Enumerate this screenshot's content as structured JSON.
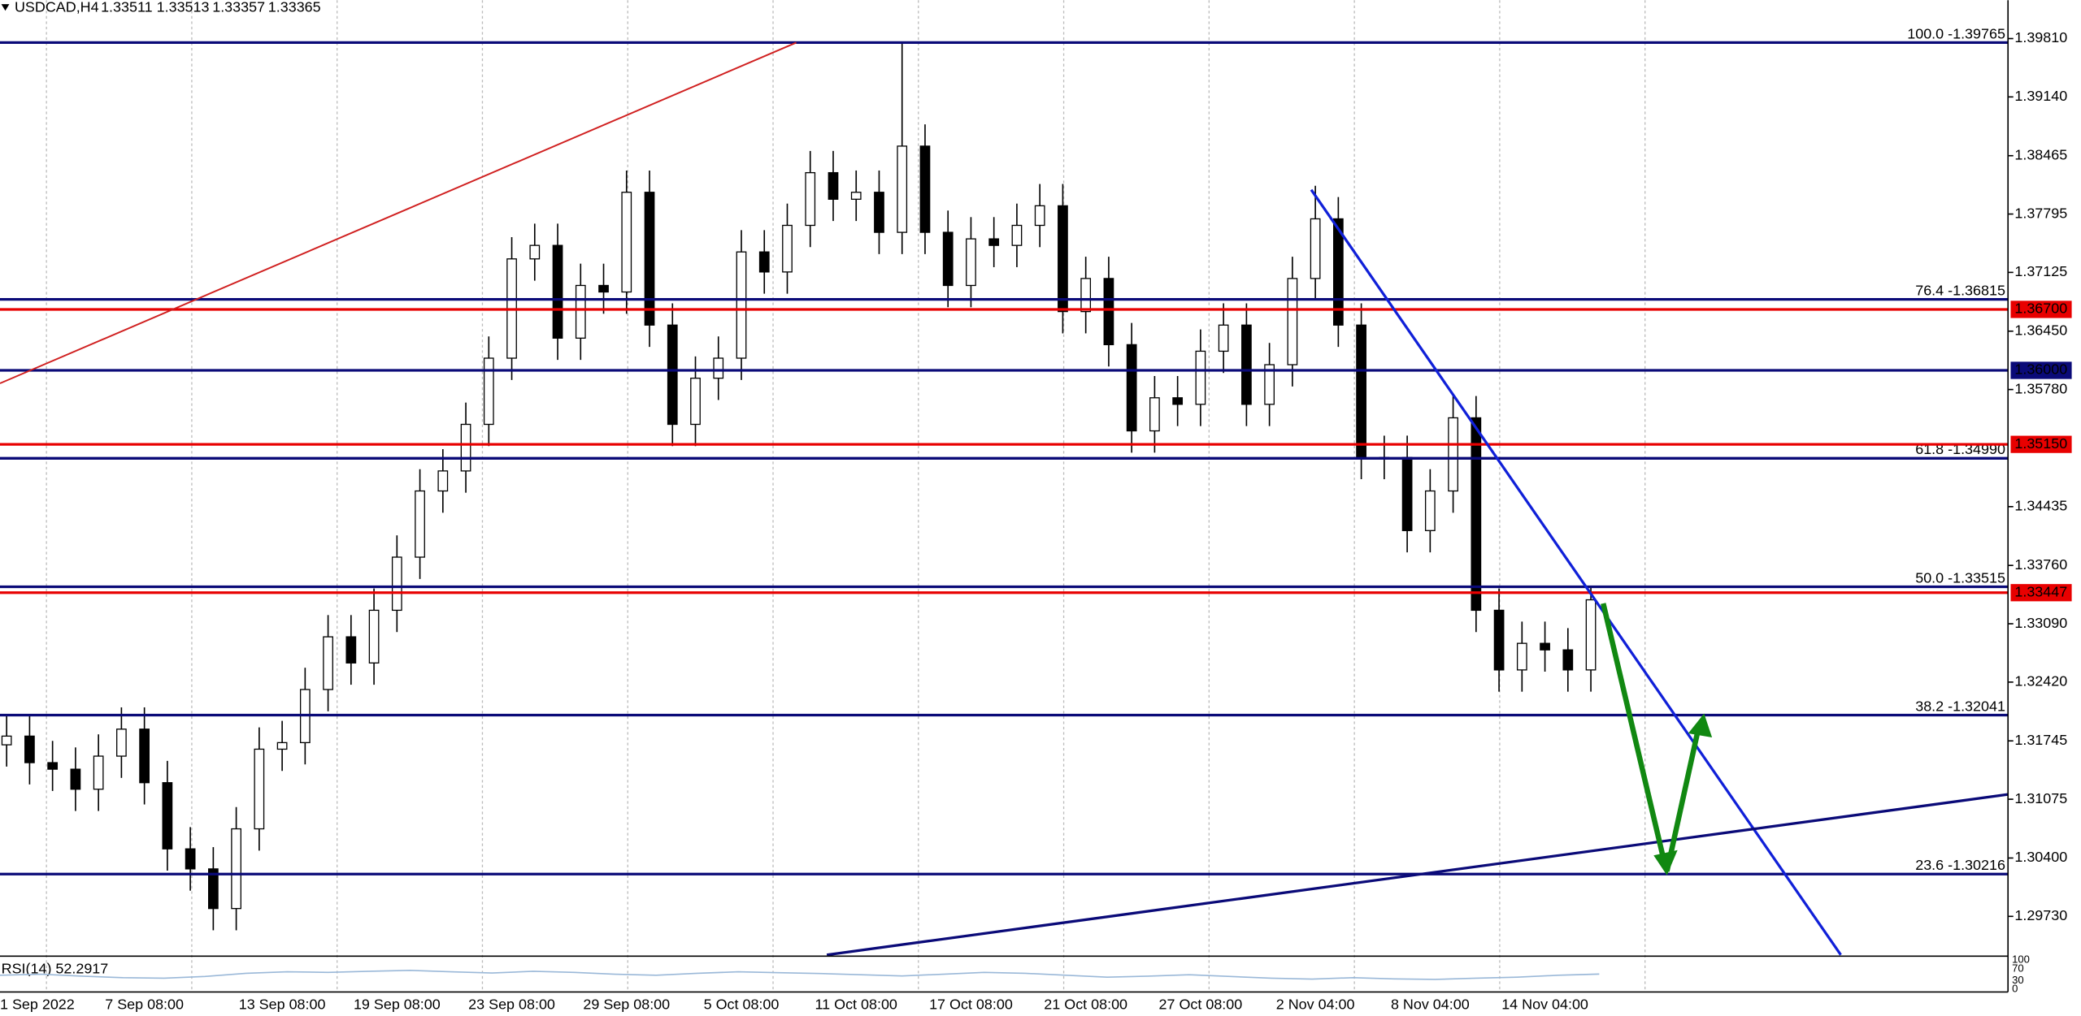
{
  "chart_data": {
    "type": "candlestick",
    "title": "USDCAD,H4",
    "quote": [
      1.33511,
      1.33513,
      1.33357,
      1.33365
    ],
    "ylim": [
      1.29288,
      1.40038
    ],
    "yticks": [
      {
        "value": 1.3981,
        "label": "1.39810"
      },
      {
        "value": 1.3914,
        "label": "1.39140"
      },
      {
        "value": 1.38465,
        "label": "1.38465"
      },
      {
        "value": 1.37795,
        "label": "1.37795"
      },
      {
        "value": 1.37125,
        "label": "1.37125"
      },
      {
        "value": 1.3645,
        "label": "1.36450"
      },
      {
        "value": 1.3578,
        "label": "1.35780"
      },
      {
        "value": 1.34435,
        "label": "1.34435"
      },
      {
        "value": 1.3376,
        "label": "1.33760"
      },
      {
        "value": 1.3309,
        "label": "1.33090"
      },
      {
        "value": 1.3242,
        "label": "1.32420"
      },
      {
        "value": 1.31745,
        "label": "1.31745"
      },
      {
        "value": 1.31075,
        "label": "1.31075"
      },
      {
        "value": 1.304,
        "label": "1.30400"
      },
      {
        "value": 1.2973,
        "label": "1.29730"
      }
    ],
    "categories": [
      "1 Sep 2022",
      null,
      null,
      null,
      null,
      null,
      "7 Sep 08:00",
      null,
      null,
      null,
      null,
      null,
      "13 Sep 08:00",
      null,
      null,
      null,
      null,
      "19 Sep 08:00",
      null,
      null,
      null,
      null,
      "23 Sep 08:00",
      null,
      null,
      null,
      null,
      "29 Sep 08:00",
      null,
      null,
      null,
      null,
      "5 Oct 08:00",
      null,
      null,
      null,
      null,
      "11 Oct 08:00",
      null,
      null,
      null,
      null,
      "17 Oct 08:00",
      null,
      null,
      null,
      null,
      "21 Oct 08:00",
      null,
      null,
      null,
      null,
      "27 Oct 08:00",
      null,
      null,
      null,
      null,
      "2 Nov 04:00",
      null,
      null,
      null,
      null,
      "8 Nov 04:00",
      null,
      null,
      null,
      null,
      "14 Nov 04:00",
      null,
      null
    ],
    "open": [
      1.317,
      1.318,
      1.31495,
      1.3142,
      1.3119,
      1.3157,
      1.3188,
      1.31265,
      1.30505,
      1.30275,
      1.2982,
      1.30735,
      1.3165,
      1.31725,
      1.32335,
      1.3294,
      1.3264,
      1.33245,
      1.33855,
      1.34615,
      1.34845,
      1.3538,
      1.3614,
      1.3728,
      1.37435,
      1.3637,
      1.36975,
      1.369,
      1.38045,
      1.3652,
      1.3538,
      1.3591,
      1.3614,
      1.3736,
      1.3713,
      1.37665,
      1.3827,
      1.37965,
      1.38045,
      1.37585,
      1.38575,
      1.37585,
      1.36975,
      1.3751,
      1.37435,
      1.37665,
      1.3789,
      1.36675,
      1.37055,
      1.36295,
      1.35305,
      1.35685,
      1.3561,
      1.3622,
      1.3652,
      1.3561,
      1.36065,
      1.37055,
      1.3774,
      1.3652,
      1.35,
      1.35,
      1.3416,
      1.34615,
      1.35455,
      1.33245,
      1.3256,
      1.32865,
      1.3279,
      1.3256
    ],
    "high": [
      1.3205,
      1.3205,
      1.31745,
      1.3167,
      1.3182,
      1.3213,
      1.3213,
      1.31515,
      1.30755,
      1.30525,
      1.30985,
      1.319,
      1.31975,
      1.32585,
      1.3319,
      1.3319,
      1.33495,
      1.34105,
      1.34865,
      1.35095,
      1.3563,
      1.3639,
      1.3753,
      1.37685,
      1.37685,
      1.37225,
      1.37225,
      1.38295,
      1.38295,
      1.3677,
      1.3616,
      1.3639,
      1.3761,
      1.3761,
      1.37915,
      1.3852,
      1.3852,
      1.38295,
      1.38295,
      1.39765,
      1.38825,
      1.37835,
      1.3776,
      1.3776,
      1.37915,
      1.3814,
      1.3814,
      1.37305,
      1.37305,
      1.36545,
      1.35935,
      1.35935,
      1.3647,
      1.3677,
      1.3677,
      1.36315,
      1.37305,
      1.3812,
      1.3799,
      1.3677,
      1.3525,
      1.3525,
      1.34865,
      1.35705,
      1.35705,
      1.33495,
      1.33115,
      1.33115,
      1.3304,
      1.33513
    ],
    "low": [
      1.3145,
      1.31245,
      1.3117,
      1.3094,
      1.3094,
      1.3132,
      1.31015,
      1.30255,
      1.30025,
      1.2957,
      1.2957,
      1.30485,
      1.314,
      1.31475,
      1.32085,
      1.3239,
      1.3239,
      1.32995,
      1.33605,
      1.34365,
      1.34595,
      1.3513,
      1.3589,
      1.3703,
      1.3612,
      1.3612,
      1.3665,
      1.3665,
      1.3627,
      1.3513,
      1.3513,
      1.3566,
      1.3589,
      1.3688,
      1.3688,
      1.37415,
      1.37715,
      1.37715,
      1.37335,
      1.37335,
      1.37335,
      1.36725,
      1.36725,
      1.37185,
      1.37185,
      1.37415,
      1.36425,
      1.36425,
      1.36045,
      1.35055,
      1.35055,
      1.3536,
      1.3536,
      1.3597,
      1.3536,
      1.3536,
      1.35815,
      1.36805,
      1.3627,
      1.3475,
      1.3475,
      1.3391,
      1.3391,
      1.34365,
      1.32995,
      1.3231,
      1.3231,
      1.3254,
      1.3231,
      1.3231
    ],
    "close": [
      1.318,
      1.31495,
      1.3142,
      1.3119,
      1.3157,
      1.3188,
      1.31265,
      1.30505,
      1.30275,
      1.2982,
      1.30735,
      1.3165,
      1.31725,
      1.32335,
      1.3294,
      1.3264,
      1.33245,
      1.33855,
      1.34615,
      1.34845,
      1.3538,
      1.3614,
      1.3728,
      1.37435,
      1.3637,
      1.36975,
      1.369,
      1.38045,
      1.3652,
      1.3538,
      1.3591,
      1.3614,
      1.3736,
      1.3713,
      1.37665,
      1.3827,
      1.37965,
      1.38045,
      1.37585,
      1.38575,
      1.37585,
      1.36975,
      1.3751,
      1.37435,
      1.37665,
      1.3789,
      1.36675,
      1.37055,
      1.36295,
      1.35305,
      1.35685,
      1.3561,
      1.3622,
      1.3652,
      1.3561,
      1.36065,
      1.37055,
      1.3774,
      1.3652,
      1.35,
      1.35,
      1.3416,
      1.34615,
      1.35455,
      1.33245,
      1.3256,
      1.32865,
      1.3279,
      1.3256,
      1.33365
    ],
    "levels": [
      {
        "value": 1.39765,
        "label": "100.0 -1.39765"
      },
      {
        "value": 1.36815,
        "label": "76.4 -1.36815"
      },
      {
        "value": 1.3499,
        "label": "61.8 -1.34990"
      },
      {
        "value": 1.33515,
        "label": "50.0 -1.33515"
      },
      {
        "value": 1.32041,
        "label": "38.2 -1.32041"
      },
      {
        "value": 1.30216,
        "label": "23.6 -1.30216"
      }
    ],
    "level_color": "#0a0a78",
    "hlines": [
      {
        "value": 1.367,
        "label": "1.36700",
        "color": "#e80000"
      },
      {
        "value": 1.36,
        "label": "1.36000",
        "color": "#0a0a78"
      },
      {
        "value": 1.3515,
        "label": "1.35150",
        "color": "#e80000"
      },
      {
        "value": 1.33447,
        "label": "1.33447",
        "color": "#e80000"
      }
    ],
    "rsi": {
      "label": "RSI(14) 52.2917",
      "color": "#9ab8d8",
      "ylim": [
        0,
        100
      ],
      "yticks": [
        0,
        30,
        70,
        100
      ],
      "values": [
        48,
        52,
        45,
        40,
        38,
        44,
        55,
        60,
        58,
        62,
        65,
        60,
        56,
        62,
        58,
        52,
        48,
        55,
        60,
        57,
        54,
        50,
        46,
        52,
        58,
        55,
        48,
        42,
        45,
        50,
        44,
        38,
        35,
        40,
        36,
        34,
        38,
        42,
        48,
        52.2917
      ]
    }
  }
}
